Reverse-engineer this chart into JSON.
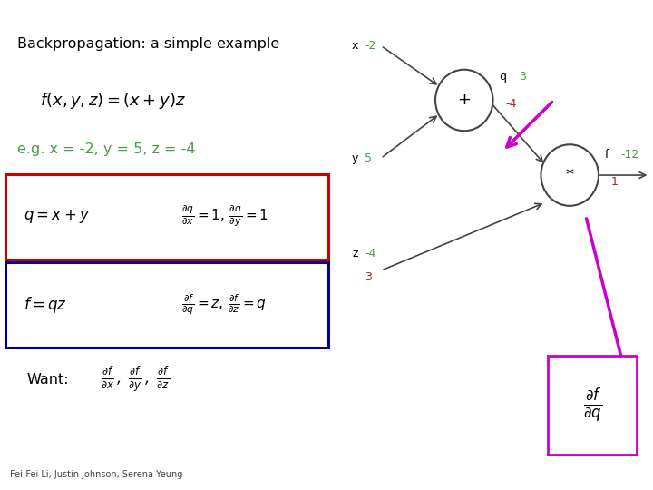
{
  "title": "Backpropagation: a simple example",
  "footer": "Fei-Fei Li, Justin Johnson, Serena Yeung",
  "green_color": "#4a9a4a",
  "red_color": "#aa2222",
  "magenta_color": "#cc00cc",
  "box1_edge": "#cc0000",
  "box2_edge": "#000099",
  "node_edge_color": "#444444",
  "line_color": "#444444",
  "x_val": "-2",
  "y_val": "5",
  "z_val": "-4",
  "q_val": "3",
  "q_grad": "-4",
  "z_grad": "3",
  "f_val": "-12",
  "f_grad": "1"
}
